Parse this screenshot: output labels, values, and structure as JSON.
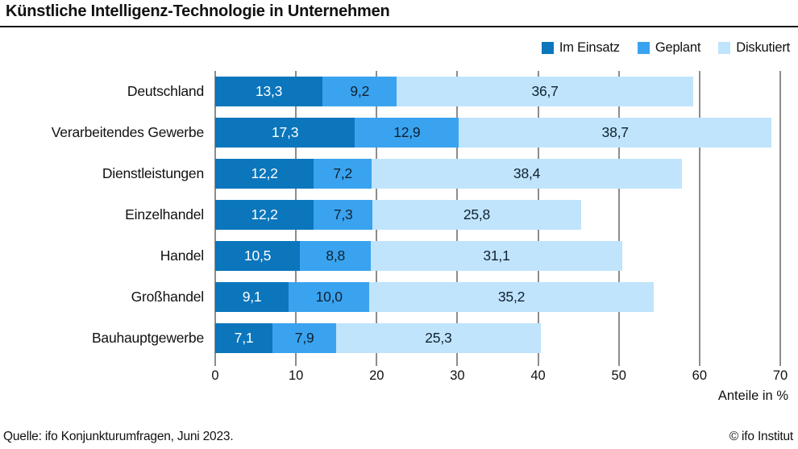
{
  "title": "Künstliche Intelligenz-Technologie in Unternehmen",
  "legend": {
    "items": [
      {
        "label": "Im Einsatz",
        "color": "#0b76bc"
      },
      {
        "label": "Geplant",
        "color": "#3aa3ef"
      },
      {
        "label": "Diskutiert",
        "color": "#c0e4fc"
      }
    ]
  },
  "chart_data": {
    "type": "bar",
    "orientation": "horizontal",
    "stacked": true,
    "title": "Künstliche Intelligenz-Technologie in Unternehmen",
    "categories": [
      "Deutschland",
      "Verarbeitendes Gewerbe",
      "Dienstleistungen",
      "Einzelhandel",
      "Handel",
      "Großhandel",
      "Bauhauptgewerbe"
    ],
    "series": [
      {
        "name": "Im Einsatz",
        "color": "#0b76bc",
        "label_color": "#ffffff",
        "values": [
          13.3,
          17.3,
          12.2,
          12.2,
          10.5,
          9.1,
          7.1
        ]
      },
      {
        "name": "Geplant",
        "color": "#3aa3ef",
        "label_color": "#0f2130",
        "values": [
          9.2,
          12.9,
          7.2,
          7.3,
          8.8,
          10.0,
          7.9
        ]
      },
      {
        "name": "Diskutiert",
        "color": "#c0e4fc",
        "label_color": "#0f2130",
        "values": [
          36.7,
          38.7,
          38.4,
          25.8,
          31.1,
          35.2,
          25.3
        ]
      }
    ],
    "xlabel": "Anteile in %",
    "xlim": [
      0,
      70
    ],
    "xticks": [
      0,
      10,
      20,
      30,
      40,
      50,
      60,
      70
    ],
    "grid": true,
    "legend_position": "top-right",
    "decimal_separator": ","
  },
  "footer": {
    "source": "Quelle: ifo Konjunkturumfragen, Juni 2023.",
    "copyright": "© ifo Institut"
  }
}
